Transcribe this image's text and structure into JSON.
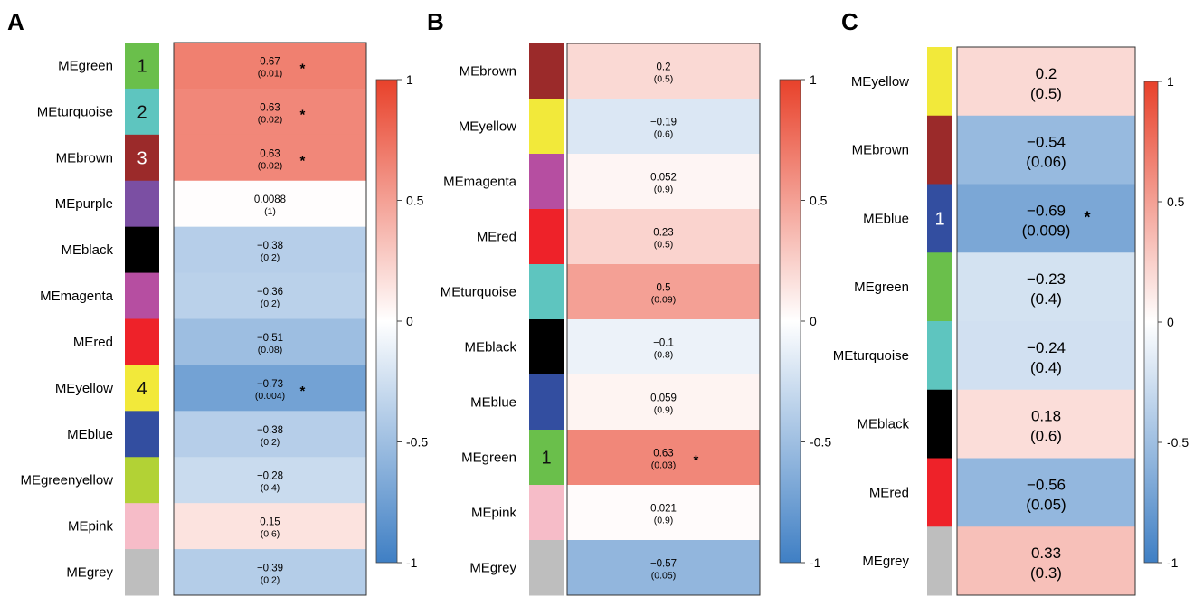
{
  "panels": [
    {
      "label": "A",
      "modules": [
        {
          "name": "MEgreen",
          "color": "#6abf4b",
          "r": 0.67,
          "p": "(0.01)",
          "sig": true,
          "rank": "1"
        },
        {
          "name": "MEturquoise",
          "color": "#5ec5bf",
          "r": 0.63,
          "p": "(0.02)",
          "sig": true,
          "rank": "2"
        },
        {
          "name": "MEbrown",
          "color": "#9b2a2a",
          "r": 0.63,
          "p": "(0.02)",
          "sig": true,
          "rank": "3"
        },
        {
          "name": "MEpurple",
          "color": "#7b4fa3",
          "r": 0.0088,
          "r_label": "0.0088",
          "p": "(1)",
          "sig": false,
          "rank": ""
        },
        {
          "name": "MEblack",
          "color": "#000000",
          "r": -0.38,
          "p": "(0.2)",
          "sig": false,
          "rank": ""
        },
        {
          "name": "MEmagenta",
          "color": "#b64ea1",
          "r": -0.36,
          "p": "(0.2)",
          "sig": false,
          "rank": ""
        },
        {
          "name": "MEred",
          "color": "#ee2229",
          "r": -0.51,
          "p": "(0.08)",
          "sig": false,
          "rank": ""
        },
        {
          "name": "MEyellow",
          "color": "#f2e93a",
          "r": -0.73,
          "p": "(0.004)",
          "sig": true,
          "rank": "4"
        },
        {
          "name": "MEblue",
          "color": "#334ea0",
          "r": -0.38,
          "p": "(0.2)",
          "sig": false,
          "rank": ""
        },
        {
          "name": "MEgreenyellow",
          "color": "#b2d235",
          "r": -0.28,
          "p": "(0.4)",
          "sig": false,
          "rank": ""
        },
        {
          "name": "MEpink",
          "color": "#f6bcc8",
          "r": 0.15,
          "p": "(0.6)",
          "sig": false,
          "rank": ""
        },
        {
          "name": "MEgrey",
          "color": "#bebebe",
          "r": -0.39,
          "p": "(0.2)",
          "sig": false,
          "rank": ""
        }
      ]
    },
    {
      "label": "B",
      "modules": [
        {
          "name": "MEbrown",
          "color": "#9b2a2a",
          "r": 0.2,
          "p": "(0.5)",
          "sig": false,
          "rank": ""
        },
        {
          "name": "MEyellow",
          "color": "#f2e93a",
          "r": -0.19,
          "p": "(0.6)",
          "sig": false,
          "rank": ""
        },
        {
          "name": "MEmagenta",
          "color": "#b64ea1",
          "r": 0.052,
          "r_label": "0.052",
          "p": "(0.9)",
          "sig": false,
          "rank": ""
        },
        {
          "name": "MEred",
          "color": "#ee2229",
          "r": 0.23,
          "p": "(0.5)",
          "sig": false,
          "rank": ""
        },
        {
          "name": "MEturquoise",
          "color": "#5ec5bf",
          "r": 0.5,
          "p": "(0.09)",
          "sig": false,
          "rank": ""
        },
        {
          "name": "MEblack",
          "color": "#000000",
          "r": -0.1,
          "p": "(0.8)",
          "sig": false,
          "rank": ""
        },
        {
          "name": "MEblue",
          "color": "#334ea0",
          "r": 0.059,
          "r_label": "0.059",
          "p": "(0.9)",
          "sig": false,
          "rank": ""
        },
        {
          "name": "MEgreen",
          "color": "#6abf4b",
          "r": 0.63,
          "p": "(0.03)",
          "sig": true,
          "rank": "1"
        },
        {
          "name": "MEpink",
          "color": "#f6bcc8",
          "r": 0.021,
          "r_label": "0.021",
          "p": "(0.9)",
          "sig": false,
          "rank": ""
        },
        {
          "name": "MEgrey",
          "color": "#bebebe",
          "r": -0.57,
          "p": "(0.05)",
          "sig": false,
          "rank": ""
        }
      ]
    },
    {
      "label": "C",
      "modules": [
        {
          "name": "MEyellow",
          "color": "#f2e93a",
          "r": 0.2,
          "p": "(0.5)",
          "sig": false,
          "rank": ""
        },
        {
          "name": "MEbrown",
          "color": "#9b2a2a",
          "r": -0.54,
          "p": "(0.06)",
          "sig": false,
          "rank": ""
        },
        {
          "name": "MEblue",
          "color": "#334ea0",
          "r": -0.69,
          "p": "(0.009)",
          "sig": true,
          "rank": "1"
        },
        {
          "name": "MEgreen",
          "color": "#6abf4b",
          "r": -0.23,
          "p": "(0.4)",
          "sig": false,
          "rank": ""
        },
        {
          "name": "MEturquoise",
          "color": "#5ec5bf",
          "r": -0.24,
          "p": "(0.4)",
          "sig": false,
          "rank": ""
        },
        {
          "name": "MEblack",
          "color": "#000000",
          "r": 0.18,
          "p": "(0.6)",
          "sig": false,
          "rank": ""
        },
        {
          "name": "MEred",
          "color": "#ee2229",
          "r": -0.56,
          "p": "(0.05)",
          "sig": false,
          "rank": ""
        },
        {
          "name": "MEgrey",
          "color": "#bebebe",
          "r": 0.33,
          "p": "(0.3)",
          "sig": false,
          "rank": ""
        }
      ]
    }
  ],
  "significance_marker": "*",
  "colorbar": {
    "ticks": [
      1,
      0.5,
      0,
      -0.5,
      -1
    ],
    "tick_labels": [
      "1",
      "0.5",
      "0",
      "-0.5",
      "-1"
    ],
    "colors": {
      "negative": "#3f7fc4",
      "zero": "#ffffff",
      "positive": "#e8412a"
    }
  },
  "chart_data": [
    {
      "type": "heatmap",
      "title": "A",
      "categories": [
        "MEgreen",
        "MEturquoise",
        "MEbrown",
        "MEpurple",
        "MEblack",
        "MEmagenta",
        "MEred",
        "MEyellow",
        "MEblue",
        "MEgreenyellow",
        "MEpink",
        "MEgrey"
      ],
      "values": [
        0.67,
        0.63,
        0.63,
        0.0088,
        -0.38,
        -0.36,
        -0.51,
        -0.73,
        -0.38,
        -0.28,
        0.15,
        -0.39
      ],
      "p_values": [
        0.01,
        0.02,
        0.02,
        1,
        0.2,
        0.2,
        0.08,
        0.004,
        0.2,
        0.4,
        0.6,
        0.2
      ],
      "significant": [
        "MEgreen",
        "MEturquoise",
        "MEbrown",
        "MEyellow"
      ],
      "color_range": [
        -1,
        1
      ]
    },
    {
      "type": "heatmap",
      "title": "B",
      "categories": [
        "MEbrown",
        "MEyellow",
        "MEmagenta",
        "MEred",
        "MEturquoise",
        "MEblack",
        "MEblue",
        "MEgreen",
        "MEpink",
        "MEgrey"
      ],
      "values": [
        0.2,
        -0.19,
        0.052,
        0.23,
        0.5,
        -0.1,
        0.059,
        0.63,
        0.021,
        -0.57
      ],
      "p_values": [
        0.5,
        0.6,
        0.9,
        0.5,
        0.09,
        0.8,
        0.9,
        0.03,
        0.9,
        0.05
      ],
      "significant": [
        "MEgreen"
      ],
      "color_range": [
        -1,
        1
      ]
    },
    {
      "type": "heatmap",
      "title": "C",
      "categories": [
        "MEyellow",
        "MEbrown",
        "MEblue",
        "MEgreen",
        "MEturquoise",
        "MEblack",
        "MEred",
        "MEgrey"
      ],
      "values": [
        0.2,
        -0.54,
        -0.69,
        -0.23,
        -0.24,
        0.18,
        -0.56,
        0.33
      ],
      "p_values": [
        0.5,
        0.06,
        0.009,
        0.4,
        0.4,
        0.6,
        0.05,
        0.3
      ],
      "significant": [
        "MEblue"
      ],
      "color_range": [
        -1,
        1
      ]
    }
  ]
}
